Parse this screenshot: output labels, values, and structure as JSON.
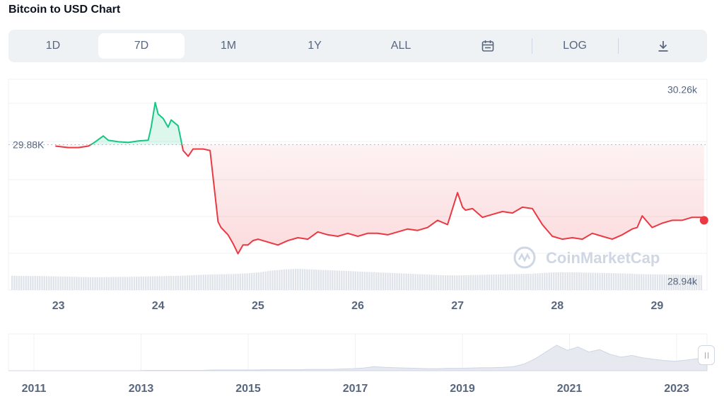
{
  "title": "Bitcoin to USD Chart",
  "toolbar": {
    "tabs": [
      {
        "label": "1D",
        "active": false
      },
      {
        "label": "7D",
        "active": true
      },
      {
        "label": "1M",
        "active": false
      },
      {
        "label": "1Y",
        "active": false
      },
      {
        "label": "ALL",
        "active": false
      }
    ],
    "calendar_icon": "calendar-icon",
    "log_label": "LOG",
    "download_icon": "download-icon"
  },
  "colors": {
    "up": "#16c784",
    "down": "#ea3943",
    "grid": "#eff2f5",
    "axis_text": "#58667e",
    "volume": "#dfe3ea"
  },
  "watermark": "CoinMarketCap",
  "chart_data": {
    "type": "line",
    "reference_value_label": "29.88K",
    "reference_value": 29880,
    "y_tick_labels": [
      "30.26k",
      "28.94k"
    ],
    "y_ticks": [
      30260,
      28940
    ],
    "ylim": [
      28880,
      30330
    ],
    "x_tick_labels": [
      "23",
      "24",
      "25",
      "26",
      "27",
      "28",
      "29"
    ],
    "x_ticks": [
      23,
      24,
      25,
      26,
      27,
      28,
      29
    ],
    "xlim": [
      22.5,
      29.5
    ],
    "series": [
      {
        "x": [
          22.97,
          23.1,
          23.2,
          23.3,
          23.35,
          23.45,
          23.5,
          23.6,
          23.7,
          23.8,
          23.9,
          23.93,
          23.97,
          24.0,
          24.05,
          24.1,
          24.13,
          24.2,
          24.25,
          24.3,
          24.35,
          24.45,
          24.52,
          24.6,
          24.63,
          24.7,
          24.75,
          24.8,
          24.85,
          24.9,
          24.95,
          25.0,
          25.1,
          25.2,
          25.3,
          25.4,
          25.5,
          25.6,
          25.7,
          25.8,
          25.9,
          26.0,
          26.1,
          26.2,
          26.3,
          26.4,
          26.5,
          26.6,
          26.7,
          26.8,
          26.9,
          27.0,
          27.05,
          27.08,
          27.15,
          27.25,
          27.35,
          27.45,
          27.55,
          27.65,
          27.75,
          27.85,
          27.95,
          28.05,
          28.15,
          28.25,
          28.35,
          28.45,
          28.55,
          28.65,
          28.75,
          28.8,
          28.85,
          28.95,
          29.05,
          29.15,
          29.25,
          29.35,
          29.45,
          29.47
        ],
        "y": [
          29870,
          29860,
          29860,
          29870,
          29890,
          29940,
          29910,
          29900,
          29895,
          29905,
          29910,
          30000,
          30170,
          30090,
          30060,
          30000,
          30050,
          30010,
          29840,
          29800,
          29850,
          29850,
          29840,
          29350,
          29310,
          29260,
          29200,
          29130,
          29190,
          29190,
          29220,
          29230,
          29210,
          29190,
          29220,
          29240,
          29230,
          29280,
          29260,
          29250,
          29270,
          29250,
          29270,
          29270,
          29260,
          29280,
          29300,
          29290,
          29310,
          29360,
          29330,
          29550,
          29450,
          29430,
          29440,
          29380,
          29400,
          29420,
          29410,
          29450,
          29440,
          29330,
          29250,
          29230,
          29240,
          29230,
          29270,
          29250,
          29230,
          29260,
          29300,
          29310,
          29390,
          29310,
          29340,
          29360,
          29360,
          29380,
          29380,
          29360
        ]
      }
    ],
    "volume": [
      50,
      49,
      49,
      48,
      47,
      46,
      45,
      45,
      46,
      46,
      47,
      48,
      49,
      50,
      52,
      54,
      55,
      56,
      58,
      62,
      68,
      72,
      74,
      72,
      70,
      68,
      66,
      64,
      62,
      60,
      58,
      56,
      54,
      52,
      51,
      52,
      53,
      54,
      55,
      56,
      57,
      60,
      62,
      62,
      61,
      60,
      59,
      58,
      56,
      55,
      54,
      54,
      53,
      52
    ]
  },
  "navigator": {
    "x_tick_labels": [
      "2011",
      "2013",
      "2015",
      "2017",
      "2019",
      "2021",
      "2023"
    ],
    "values": [
      0,
      0,
      0,
      0,
      0,
      0,
      0,
      0,
      0,
      0,
      0,
      0,
      0,
      1,
      1,
      1,
      1,
      1,
      1,
      2,
      2,
      2,
      2,
      2,
      3,
      3,
      3,
      3,
      4,
      4,
      4,
      5,
      6,
      8,
      12,
      10,
      9,
      8,
      7,
      6,
      6,
      7,
      7,
      8,
      9,
      9,
      10,
      12,
      20,
      35,
      55,
      75,
      60,
      70,
      55,
      62,
      48,
      40,
      45,
      38,
      34,
      30,
      28,
      31,
      35,
      38
    ]
  }
}
